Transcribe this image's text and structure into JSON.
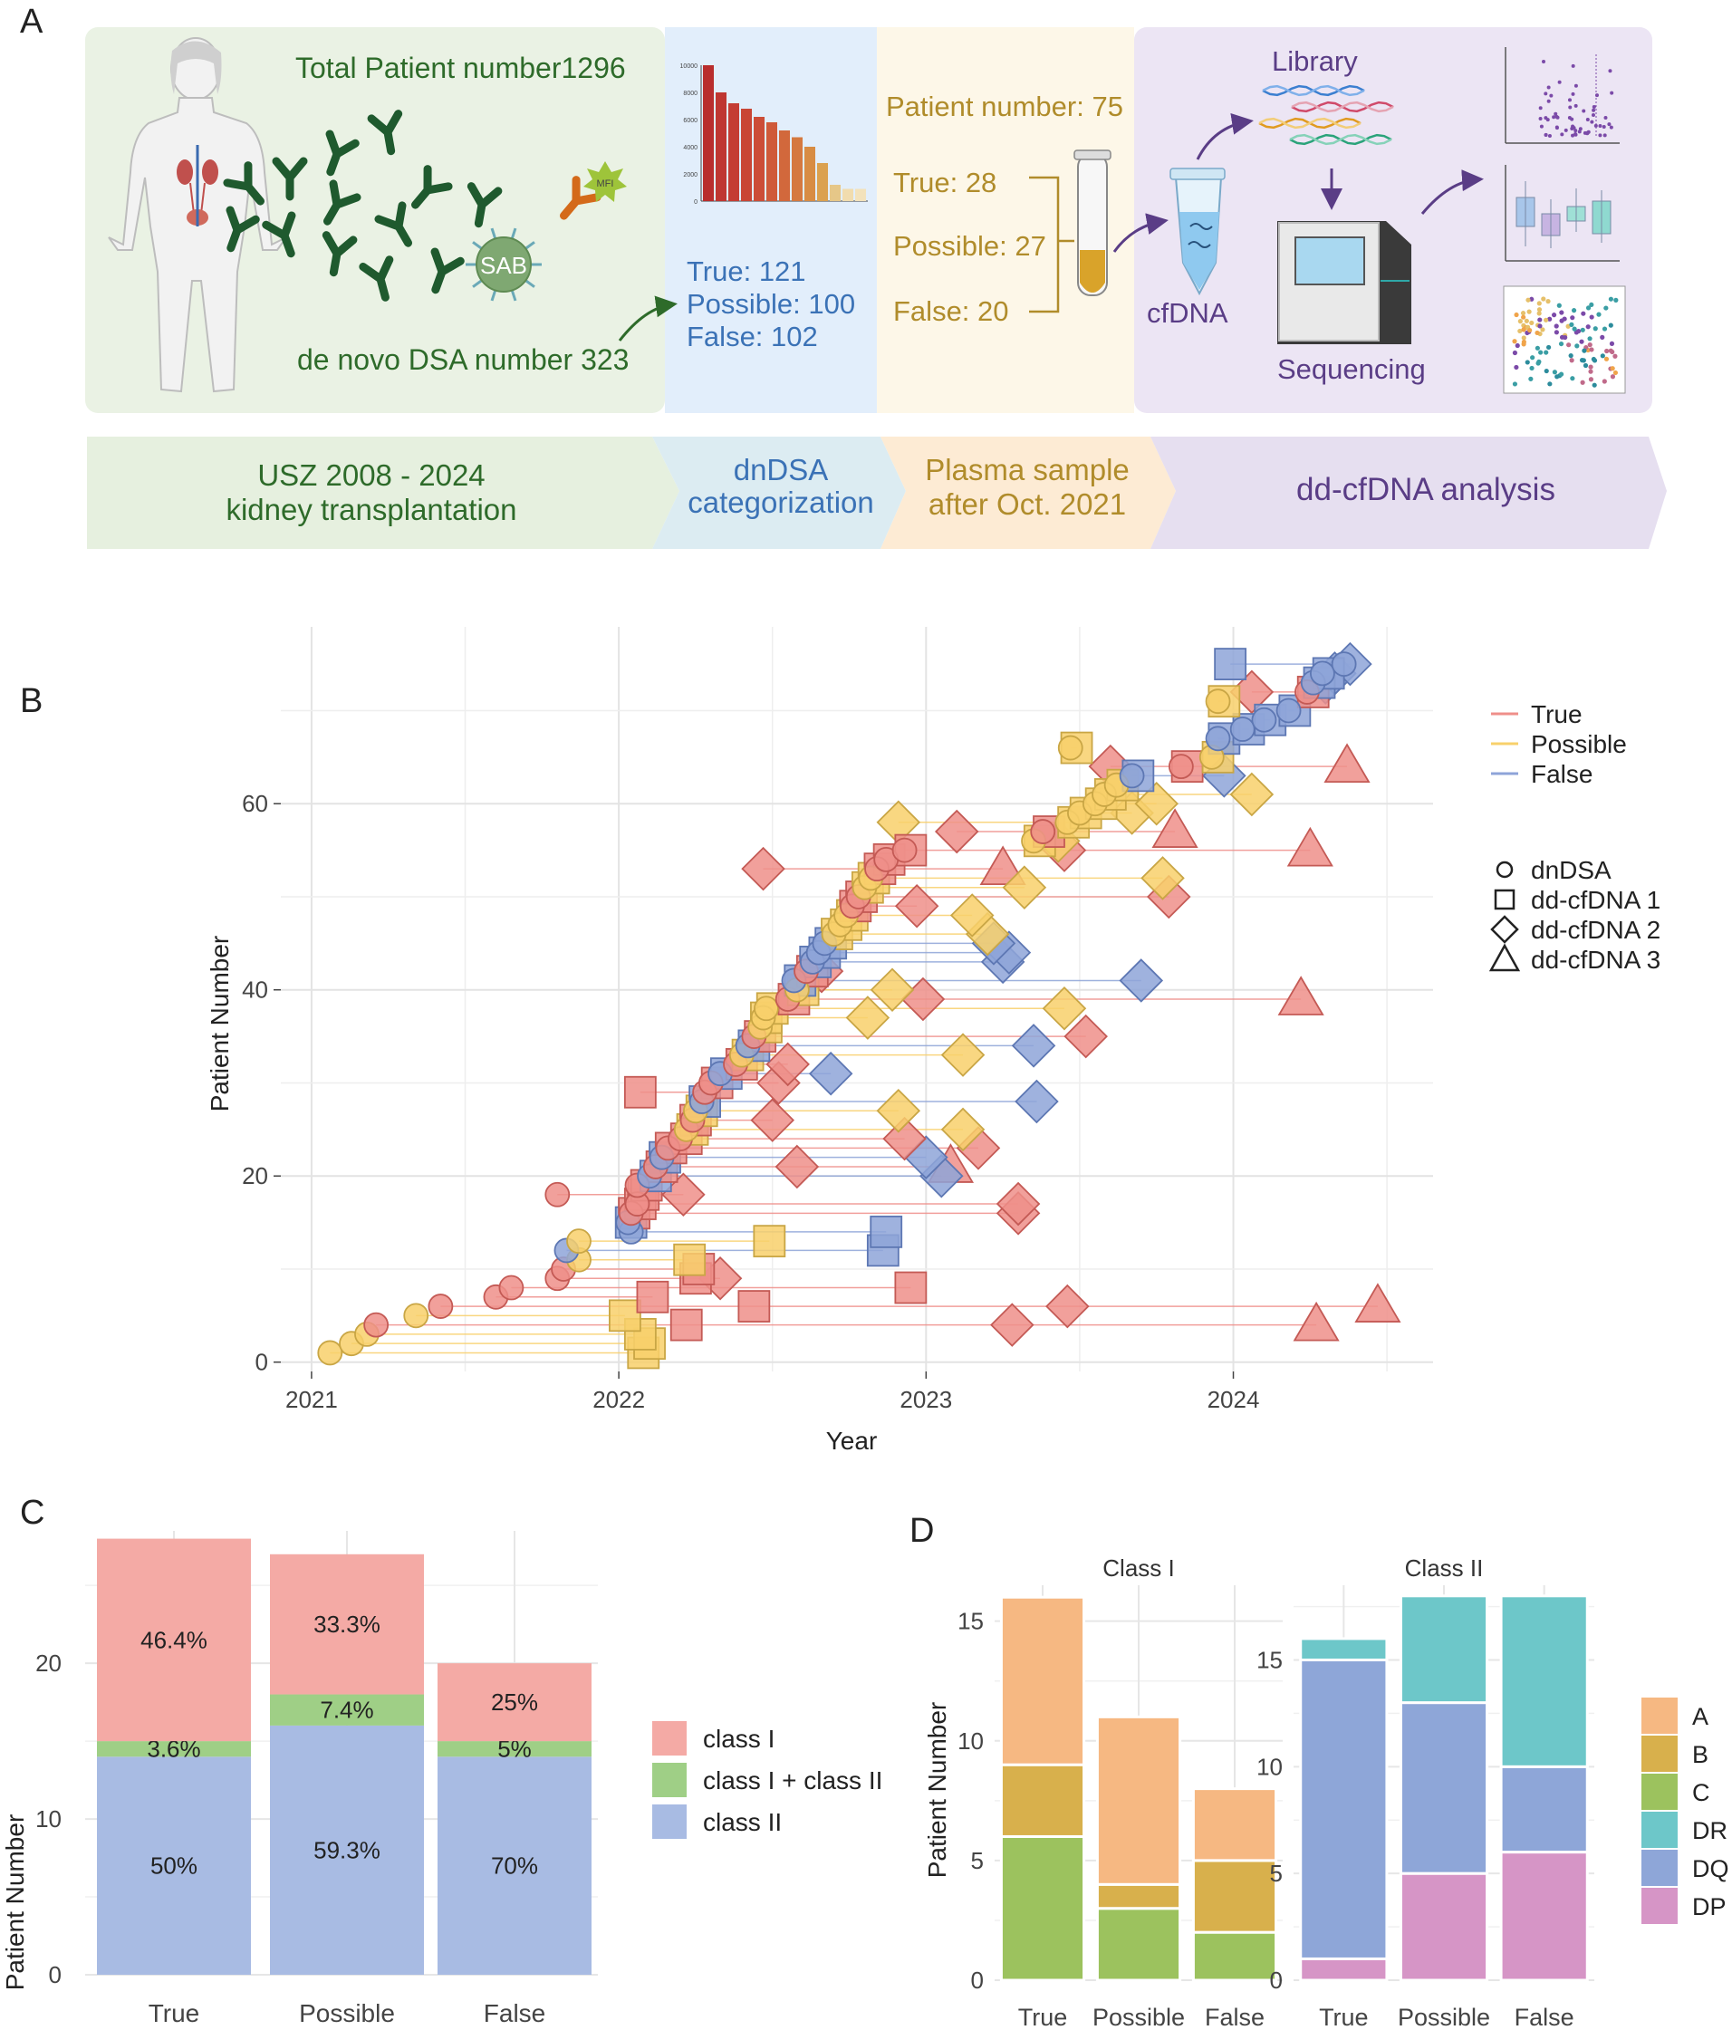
{
  "colors": {
    "true": "#ef8f8a",
    "possible": "#f8d06b",
    "false": "#8ea4d8",
    "green_panel": "#eaf2e4",
    "blue_panel": "#e2eefb",
    "cream_panel": "#fdf7e8",
    "purple_panel": "#ece5f4",
    "text_green": "#2e6b2a",
    "text_blue": "#3b72b6",
    "text_gold": "#b08c2b",
    "text_purple": "#6a4a9c",
    "classI": "#f4aaa5",
    "classI_II": "#9fcf86",
    "classII": "#a8bbe3",
    "A": "#f6b882",
    "B": "#d8b04c",
    "C": "#9cc25e",
    "DR": "#6dc7c9",
    "DQ": "#8ea6d8",
    "DP": "#d695c6"
  },
  "panelA": {
    "label": "A",
    "total_patients": "Total Patient number1296",
    "dnDSA_number": "de novo DSA number 323",
    "sab": "SAB",
    "mfi": "MFI",
    "categories": [
      "True: 121",
      "Possible: 100",
      "False: 102"
    ],
    "patient_number": "Patient number: 75",
    "plasma_categories": [
      "True: 28",
      "Possible: 27",
      "False: 20"
    ],
    "cfdna": "cfDNA",
    "library": "Library",
    "sequencing": "Sequencing",
    "mini_bars": [
      10000,
      8000,
      7200,
      6800,
      6200,
      5800,
      5200,
      4700,
      4000,
      2800,
      1200,
      900,
      900
    ],
    "mini_ticks": [
      "10000",
      "8000",
      "6000",
      "4000",
      "2000",
      "0"
    ],
    "steps": [
      {
        "line1": "USZ 2008 - 2024",
        "line2": "kidney transplantation"
      },
      {
        "line1": "dnDSA",
        "line2": "categorization"
      },
      {
        "line1": "Plasma sample",
        "line2": "after Oct. 2021"
      },
      {
        "line1": "dd-cfDNA analysis",
        "line2": ""
      }
    ]
  },
  "chart_data": [
    {
      "panel": "B",
      "type": "scatter",
      "xlabel": "Year",
      "ylabel": "Patient Number",
      "x_ticks": [
        "2021",
        "2022",
        "2023",
        "2024"
      ],
      "y_ticks": [
        "0",
        "20",
        "40",
        "60"
      ],
      "xlim": [
        2020.9,
        2024.65
      ],
      "ylim": [
        -1,
        79
      ],
      "legend_color": [
        {
          "key": "true",
          "label": "True"
        },
        {
          "key": "possible",
          "label": "Possible"
        },
        {
          "key": "false",
          "label": "False"
        }
      ],
      "legend_shape": [
        {
          "shape": "circle",
          "label": "dnDSA"
        },
        {
          "shape": "square",
          "label": "dd-cfDNA 1"
        },
        {
          "shape": "diamond",
          "label": "dd-cfDNA 2"
        },
        {
          "shape": "triangle",
          "label": "dd-cfDNA 3"
        }
      ],
      "points": [
        {
          "p": 1,
          "c": "possible",
          "t": [
            2021.06,
            2022.08
          ]
        },
        {
          "p": 2,
          "c": "possible",
          "t": [
            2021.13,
            2022.1
          ]
        },
        {
          "p": 3,
          "c": "possible",
          "t": [
            2021.18,
            2022.07
          ]
        },
        {
          "p": 4,
          "c": "true",
          "t": [
            2021.21,
            2022.22,
            2023.28,
            2024.27
          ]
        },
        {
          "p": 5,
          "c": "possible",
          "t": [
            2021.34,
            2022.02
          ]
        },
        {
          "p": 6,
          "c": "true",
          "t": [
            2021.42,
            2022.44,
            2023.46,
            2024.47
          ]
        },
        {
          "p": 7,
          "c": "true",
          "t": [
            2021.6,
            2022.11
          ]
        },
        {
          "p": 8,
          "c": "true",
          "t": [
            2021.65,
            2022.95
          ]
        },
        {
          "p": 9,
          "c": "true",
          "t": [
            2021.8,
            2022.25,
            2022.33
          ]
        },
        {
          "p": 10,
          "c": "true",
          "t": [
            2021.82,
            2022.26
          ]
        },
        {
          "p": 11,
          "c": "possible",
          "t": [
            2021.87,
            2022.23
          ]
        },
        {
          "p": 12,
          "c": "false",
          "t": [
            2021.83,
            2022.86
          ]
        },
        {
          "p": 13,
          "c": "possible",
          "t": [
            2021.87,
            2022.49
          ]
        },
        {
          "p": 14,
          "c": "false",
          "t": [
            2022.04,
            2022.87
          ]
        },
        {
          "p": 15,
          "c": "false",
          "t": [
            2022.03,
            2022.04
          ]
        },
        {
          "p": 16,
          "c": "true",
          "t": [
            2022.04,
            2022.05,
            2023.3
          ]
        },
        {
          "p": 17,
          "c": "true",
          "t": [
            2022.06,
            2022.07,
            2023.3
          ]
        },
        {
          "p": 18,
          "c": "true",
          "t": [
            2021.8,
            2022.08,
            2022.21
          ]
        },
        {
          "p": 19,
          "c": "true",
          "t": [
            2022.06,
            2022.09
          ]
        },
        {
          "p": 20,
          "c": "false",
          "t": [
            2022.1,
            2022.12,
            2023.05
          ]
        },
        {
          "p": 21,
          "c": "true",
          "t": [
            2022.12,
            2022.14,
            2022.58,
            2023.08
          ]
        },
        {
          "p": 22,
          "c": "false",
          "t": [
            2022.14,
            2022.15,
            2023.0
          ]
        },
        {
          "p": 23,
          "c": "true",
          "t": [
            2022.16,
            2022.17,
            2023.17
          ]
        },
        {
          "p": 24,
          "c": "true",
          "t": [
            2022.2,
            2022.22,
            2022.93
          ]
        },
        {
          "p": 25,
          "c": "possible",
          "t": [
            2022.22,
            2022.24,
            2023.12
          ]
        },
        {
          "p": 26,
          "c": "true",
          "t": [
            2022.24,
            2022.25,
            2022.5
          ]
        },
        {
          "p": 27,
          "c": "possible",
          "t": [
            2022.25,
            2022.27,
            2022.91
          ]
        },
        {
          "p": 28,
          "c": "false",
          "t": [
            2022.27,
            2022.28,
            2023.36
          ]
        },
        {
          "p": 29,
          "c": "true",
          "t": [
            2022.28,
            2022.07
          ]
        },
        {
          "p": 30,
          "c": "true",
          "t": [
            2022.3,
            2022.32,
            2022.52
          ]
        },
        {
          "p": 31,
          "c": "false",
          "t": [
            2022.33,
            2022.35,
            2022.69
          ]
        },
        {
          "p": 32,
          "c": "true",
          "t": [
            2022.38,
            2022.4,
            2022.55
          ]
        },
        {
          "p": 33,
          "c": "possible",
          "t": [
            2022.4,
            2022.42,
            2023.12
          ]
        },
        {
          "p": 34,
          "c": "false",
          "t": [
            2022.42,
            2022.44,
            2023.35
          ]
        },
        {
          "p": 35,
          "c": "true",
          "t": [
            2022.44,
            2022.46,
            2023.52
          ]
        },
        {
          "p": 36,
          "c": "possible",
          "t": [
            2022.46,
            2022.48
          ]
        },
        {
          "p": 37,
          "c": "possible",
          "t": [
            2022.47,
            2022.48,
            2022.81
          ]
        },
        {
          "p": 38,
          "c": "possible",
          "t": [
            2022.48,
            2022.5,
            2023.45
          ]
        },
        {
          "p": 39,
          "c": "true",
          "t": [
            2022.55,
            2022.57,
            2022.99,
            2024.22
          ]
        },
        {
          "p": 40,
          "c": "possible",
          "t": [
            2022.58,
            2022.6,
            2022.89
          ]
        },
        {
          "p": 41,
          "c": "false",
          "t": [
            2022.57,
            2022.59,
            2023.7
          ]
        },
        {
          "p": 42,
          "c": "true",
          "t": [
            2022.61,
            2022.63,
            2022.66
          ]
        },
        {
          "p": 43,
          "c": "false",
          "t": [
            2022.63,
            2022.64,
            2023.25
          ]
        },
        {
          "p": 44,
          "c": "false",
          "t": [
            2022.65,
            2022.67,
            2023.27
          ]
        },
        {
          "p": 45,
          "c": "false",
          "t": [
            2022.67,
            2022.69,
            2023.22
          ]
        },
        {
          "p": 46,
          "c": "possible",
          "t": [
            2022.7,
            2022.71,
            2023.2
          ]
        },
        {
          "p": 47,
          "c": "possible",
          "t": [
            2022.72,
            2022.74
          ]
        },
        {
          "p": 48,
          "c": "possible",
          "t": [
            2022.74,
            2022.76,
            2023.15
          ]
        },
        {
          "p": 49,
          "c": "true",
          "t": [
            2022.76,
            2022.77,
            2022.97
          ]
        },
        {
          "p": 50,
          "c": "true",
          "t": [
            2022.78,
            2022.79,
            2023.79
          ]
        },
        {
          "p": 51,
          "c": "possible",
          "t": [
            2022.8,
            2022.81,
            2023.32
          ]
        },
        {
          "p": 52,
          "c": "possible",
          "t": [
            2022.82,
            2022.83,
            2023.77
          ]
        },
        {
          "p": 53,
          "c": "true",
          "t": [
            2022.84,
            2022.85,
            2022.47,
            2023.25
          ]
        },
        {
          "p": 54,
          "c": "true",
          "t": [
            2022.87,
            2022.88
          ]
        },
        {
          "p": 55,
          "c": "true",
          "t": [
            2022.93,
            2022.95,
            2023.45,
            2024.25
          ]
        },
        {
          "p": 56,
          "c": "possible",
          "t": [
            2023.35,
            2023.37,
            2023.43
          ]
        },
        {
          "p": 57,
          "c": "true",
          "t": [
            2023.38,
            2023.4,
            2023.1,
            2023.81
          ]
        },
        {
          "p": 58,
          "c": "possible",
          "t": [
            2023.46,
            2023.48,
            2022.91
          ]
        },
        {
          "p": 59,
          "c": "possible",
          "t": [
            2023.5,
            2023.52,
            2023.67
          ]
        },
        {
          "p": 60,
          "c": "possible",
          "t": [
            2023.55,
            2023.57,
            2023.75
          ]
        },
        {
          "p": 61,
          "c": "possible",
          "t": [
            2023.58,
            2023.6,
            2024.06
          ]
        },
        {
          "p": 62,
          "c": "possible",
          "t": [
            2023.62,
            2023.64
          ]
        },
        {
          "p": 63,
          "c": "false",
          "t": [
            2023.67,
            2023.69,
            2023.97
          ]
        },
        {
          "p": 64,
          "c": "true",
          "t": [
            2023.83,
            2023.85,
            2023.6,
            2024.37
          ]
        },
        {
          "p": 65,
          "c": "possible",
          "t": [
            2023.93,
            2023.95
          ]
        },
        {
          "p": 66,
          "c": "possible",
          "t": [
            2023.47,
            2023.49
          ]
        },
        {
          "p": 67,
          "c": "false",
          "t": [
            2023.95,
            2023.97
          ]
        },
        {
          "p": 68,
          "c": "false",
          "t": [
            2024.03,
            2024.05
          ]
        },
        {
          "p": 69,
          "c": "false",
          "t": [
            2024.1,
            2024.12
          ]
        },
        {
          "p": 70,
          "c": "false",
          "t": [
            2024.18,
            2024.2
          ]
        },
        {
          "p": 71,
          "c": "possible",
          "t": [
            2023.95,
            2023.97
          ]
        },
        {
          "p": 72,
          "c": "true",
          "t": [
            2024.24,
            2024.26,
            2024.06
          ]
        },
        {
          "p": 73,
          "c": "false",
          "t": [
            2024.26,
            2024.28,
            2024.3
          ]
        },
        {
          "p": 74,
          "c": "false",
          "t": [
            2024.29,
            2024.31,
            2024.33
          ]
        },
        {
          "p": 75,
          "c": "false",
          "t": [
            2024.36,
            2023.99,
            2024.38
          ]
        }
      ]
    },
    {
      "panel": "C",
      "type": "bar",
      "stacked": true,
      "xlabel": "",
      "ylabel": "Patient Number",
      "categories": [
        "True",
        "Possible",
        "False"
      ],
      "y_ticks": [
        "0",
        "10",
        "20"
      ],
      "ylim": [
        0,
        28.5
      ],
      "series": [
        {
          "name": "class II",
          "key": "classII",
          "values": [
            14,
            16,
            14
          ],
          "labels": [
            "50%",
            "59.3%",
            "70%"
          ]
        },
        {
          "name": "class I + class II",
          "key": "classI_II",
          "values": [
            1,
            2,
            1
          ],
          "labels": [
            "3.6%",
            "7.4%",
            "5%"
          ]
        },
        {
          "name": "class I",
          "key": "classI",
          "values": [
            13,
            9,
            5
          ],
          "labels": [
            "46.4%",
            "33.3%",
            "25%"
          ]
        }
      ],
      "legend": [
        "class I",
        "class I + class II",
        "class II"
      ]
    },
    {
      "panel": "D",
      "type": "bar",
      "stacked": true,
      "ylabel": "Patient Number",
      "facets": [
        {
          "title": "Class I",
          "categories": [
            "True",
            "Possible",
            "False"
          ],
          "y_ticks": [
            "0",
            "5",
            "10",
            "15"
          ],
          "ylim": [
            0,
            16.5
          ],
          "series": [
            {
              "name": "C",
              "values": [
                6,
                3,
                2
              ]
            },
            {
              "name": "B",
              "values": [
                3,
                1,
                3
              ]
            },
            {
              "name": "A",
              "values": [
                7,
                7,
                3
              ]
            }
          ]
        },
        {
          "title": "Class II",
          "categories": [
            "True",
            "Possible",
            "False"
          ],
          "y_ticks": [
            "0",
            "5",
            "10",
            "15"
          ],
          "ylim": [
            0,
            18.5
          ],
          "series": [
            {
              "name": "DP",
              "values": [
                1,
                5,
                6
              ]
            },
            {
              "name": "DQ",
              "values": [
                14,
                8,
                4
              ]
            },
            {
              "name": "DR",
              "values": [
                1,
                5,
                8
              ]
            }
          ]
        }
      ],
      "legend": [
        "A",
        "B",
        "C",
        "DR",
        "DQ",
        "DP"
      ]
    }
  ]
}
